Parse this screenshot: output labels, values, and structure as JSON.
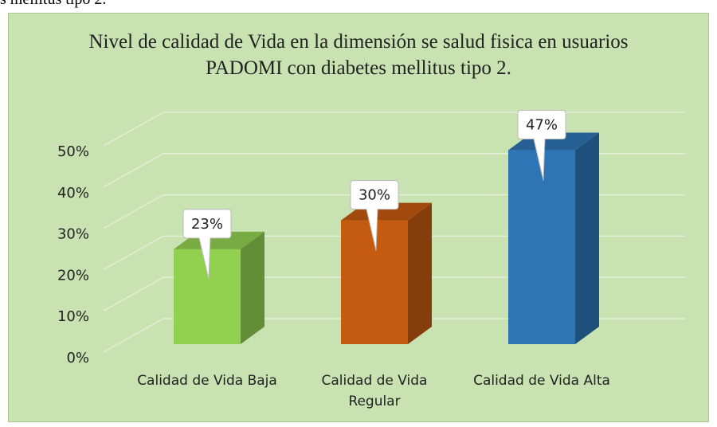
{
  "caption_fragment": "s mellitus tipo 2.",
  "chart_data": {
    "type": "bar3d",
    "title": "Nivel de calidad de Vida en la dimensión se salud fisica en usuarios PADOMI con diabetes mellitus tipo 2.",
    "categories": [
      "Calidad de Vida Baja",
      "Calidad de Vida Regular",
      "Calidad de Vida Alta"
    ],
    "values": [
      23,
      30,
      47
    ],
    "value_labels": [
      "23%",
      "30%",
      "47%"
    ],
    "colors": [
      "#92d050",
      "#c55a11",
      "#2e75b6"
    ],
    "ylim": [
      0,
      50
    ],
    "yticks": [
      {
        "value": 0,
        "label": "0%"
      },
      {
        "value": 10,
        "label": "10%"
      },
      {
        "value": 20,
        "label": "20%"
      },
      {
        "value": 30,
        "label": "30%"
      },
      {
        "value": 40,
        "label": "40%"
      },
      {
        "value": 50,
        "label": "50%"
      }
    ],
    "grid": true
  }
}
